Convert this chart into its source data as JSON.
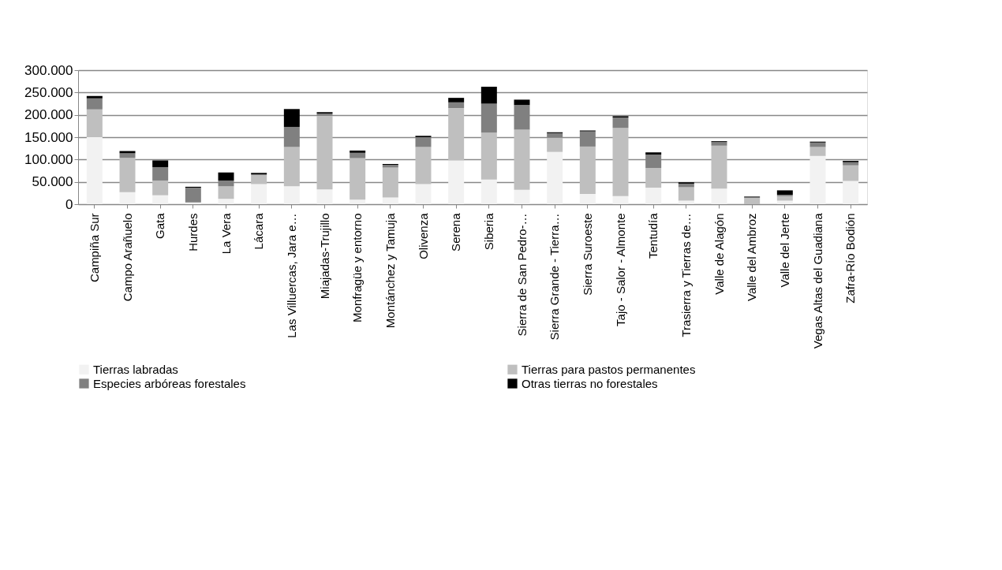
{
  "chart_data": {
    "type": "bar",
    "stacked": true,
    "categories": [
      "Campiña Sur",
      "Campo Arañuelo",
      "Gata",
      "Hurdes",
      "La Vera",
      "Lácara",
      "Las Villuercas, Jara e…",
      "Miajadas-Trujillo",
      "Monfragüe y entorno",
      "Montánchez y Tamuja",
      "Olivenza",
      "Serena",
      "Siberia",
      "Sierra de San Pedro-…",
      "Sierra Grande - Tierra…",
      "Sierra Suroeste",
      "Tajo - Salor - Almonte",
      "Tentudía",
      "Trasierra y Tierras de…",
      "Valle de Alagón",
      "Valle del Ambroz",
      "Valle del Jerte",
      "Vegas Altas del Guadiana",
      "Zafra-Río Bodión"
    ],
    "series": [
      {
        "name": "Tierras labradas",
        "color": "#f2f2f2",
        "values": [
          150000,
          27000,
          20000,
          4000,
          12000,
          45000,
          40000,
          33000,
          10000,
          15000,
          45000,
          98000,
          55000,
          32000,
          117000,
          23000,
          18000,
          37000,
          8000,
          35000,
          null,
          8000,
          108000,
          52000
        ]
      },
      {
        "name": "Tierras para pastos permanentes",
        "color": "#bfbfbf",
        "values": [
          62000,
          77000,
          33000,
          null,
          28000,
          20000,
          88000,
          165000,
          93000,
          67000,
          83000,
          117000,
          105000,
          135000,
          32000,
          106000,
          153000,
          44000,
          30000,
          96000,
          15000,
          10000,
          20000,
          35000
        ]
      },
      {
        "name": "Especies arbóreas forestales",
        "color": "#808080",
        "values": [
          25000,
          10000,
          30000,
          33000,
          13000,
          2000,
          45000,
          5000,
          12000,
          6000,
          22000,
          13000,
          65000,
          55000,
          10000,
          34000,
          23000,
          30000,
          8000,
          8000,
          null,
          3000,
          10000,
          7000
        ]
      },
      {
        "name": "Otras tierras no forestales",
        "color": "#000000",
        "values": [
          5000,
          5000,
          15000,
          2000,
          18000,
          3000,
          40000,
          3000,
          5000,
          2000,
          3000,
          10000,
          38000,
          12000,
          2000,
          2000,
          3000,
          5000,
          3000,
          2000,
          2000,
          10000,
          2000,
          3000
        ]
      }
    ],
    "ylim": [
      0,
      300000
    ],
    "yticks": [
      {
        "value": 0,
        "label": "0"
      },
      {
        "value": 50000,
        "label": "50.000"
      },
      {
        "value": 100000,
        "label": "100.000"
      },
      {
        "value": 150000,
        "label": "150.000"
      },
      {
        "value": 200000,
        "label": "200.000"
      },
      {
        "value": 250000,
        "label": "250.000"
      },
      {
        "value": 300000,
        "label": "300.000"
      }
    ],
    "grid": "y",
    "legend": "bottom"
  }
}
